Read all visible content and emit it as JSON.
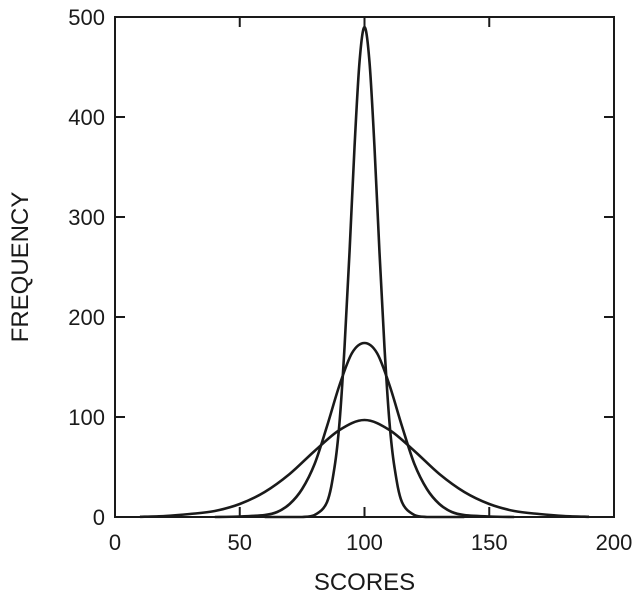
{
  "chart_data": {
    "type": "line",
    "title": "",
    "xlabel": "SCORES",
    "ylabel": "FREQUENCY",
    "xlim": [
      0,
      200
    ],
    "ylim": [
      0,
      500
    ],
    "x_ticks": [
      0,
      50,
      100,
      150,
      200
    ],
    "y_ticks": [
      0,
      100,
      200,
      300,
      400,
      500
    ],
    "grid": false,
    "legend": "none",
    "line_color": "#1a1a1a",
    "series": [
      {
        "x": [
          60,
          70,
          75,
          80,
          85,
          88,
          90,
          92,
          94,
          96,
          98,
          100,
          102,
          104,
          106,
          108,
          110,
          112,
          115,
          120,
          125,
          130,
          140
        ],
        "y": [
          0,
          0,
          0,
          2,
          15,
          50,
          95,
          170,
          265,
          370,
          455,
          490,
          455,
          370,
          265,
          170,
          95,
          50,
          15,
          2,
          0,
          0,
          0
        ]
      },
      {
        "x": [
          40,
          50,
          60,
          65,
          70,
          75,
          80,
          85,
          90,
          95,
          100,
          105,
          110,
          115,
          120,
          125,
          130,
          135,
          140,
          150,
          160
        ],
        "y": [
          0,
          0.5,
          2,
          5,
          13,
          28,
          53,
          91,
          132,
          164,
          174,
          164,
          132,
          91,
          53,
          28,
          13,
          5,
          2,
          0.5,
          0
        ]
      },
      {
        "x": [
          10,
          20,
          30,
          40,
          50,
          60,
          70,
          80,
          90,
          100,
          110,
          120,
          130,
          140,
          150,
          160,
          170,
          180,
          190
        ],
        "y": [
          0.2,
          1,
          3,
          6,
          13,
          25,
          43,
          66,
          87,
          97,
          87,
          66,
          43,
          25,
          13,
          6,
          3,
          1,
          0.2
        ]
      }
    ]
  }
}
